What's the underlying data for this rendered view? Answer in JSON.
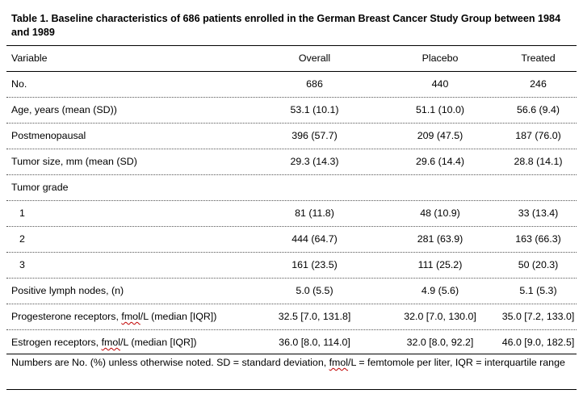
{
  "caption": "Table 1. Baseline characteristics of 686 patients enrolled in the German Breast Cancer Study Group between 1984 and 1989",
  "headers": [
    "Variable",
    "Overall",
    "Placebo",
    "Treated"
  ],
  "rows": [
    {
      "variable": "No.",
      "overall": "686",
      "placebo": "440",
      "treated": "246"
    },
    {
      "variable": "Age, years (mean (SD))",
      "overall": "53.1 (10.1)",
      "placebo": "51.1 (10.0)",
      "treated": "56.6 (9.4)"
    },
    {
      "variable": "Postmenopausal",
      "overall": "396 (57.7)",
      "placebo": "209 (47.5)",
      "treated": "187 (76.0)"
    },
    {
      "variable": "Tumor size, mm (mean (SD)",
      "overall": "29.3 (14.3)",
      "placebo": "29.6 (14.4)",
      "treated": "28.8 (14.1)"
    },
    {
      "variable": "Tumor grade",
      "overall": "",
      "placebo": "",
      "treated": ""
    },
    {
      "variable": "1",
      "overall": "81 (11.8)",
      "placebo": "48 (10.9)",
      "treated": "33 (13.4)"
    },
    {
      "variable": "2",
      "overall": "444 (64.7)",
      "placebo": "281 (63.9)",
      "treated": "163 (66.3)"
    },
    {
      "variable": "3",
      "overall": "161 (23.5)",
      "placebo": "111 (25.2)",
      "treated": "50 (20.3)"
    },
    {
      "variable": "Positive lymph nodes, (n)",
      "overall": "5.0 (5.5)",
      "placebo": "4.9 (5.6)",
      "treated": "5.1 (5.3)"
    },
    {
      "variable_parts": [
        "Progesterone receptors, ",
        "fmol",
        "/L (median [IQR])"
      ],
      "overall": "32.5 [7.0, 131.8]",
      "placebo": "32.0 [7.0, 130.0]",
      "treated": "35.0 [7.2, 133.0]"
    },
    {
      "variable_parts": [
        "Estrogen receptors, ",
        "fmol",
        "/L (median [IQR])"
      ],
      "overall": "36.0 [8.0, 114.0]",
      "placebo": "32.0 [8.0, 92.2]",
      "treated": "46.0 [9.0, 182.5]"
    }
  ],
  "footnote_parts": [
    "Numbers are No. (%) unless otherwise noted. SD = standard deviation, ",
    "fmol",
    "/L = femtomole per liter, IQR = interquartile range"
  ]
}
